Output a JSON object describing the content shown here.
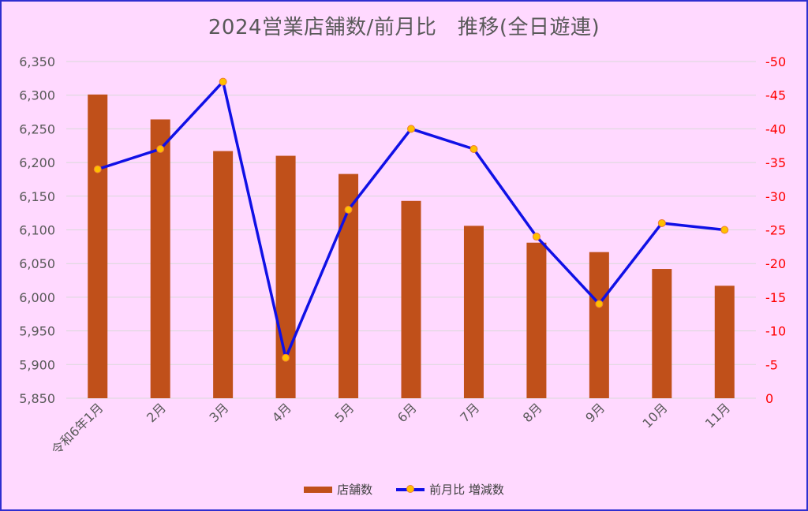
{
  "chart_data": {
    "type": "bar",
    "title": "2024営業店舗数/前月比　推移(全日遊連)",
    "categories": [
      "令和6年1月",
      "2月",
      "3月",
      "4月",
      "5月",
      "6月",
      "7月",
      "8月",
      "9月",
      "10月",
      "11月"
    ],
    "series": [
      {
        "name": "店舗数",
        "type": "bar",
        "axis": "left",
        "color": "#c0501a",
        "values": [
          6301,
          6264,
          6217,
          6210,
          6183,
          6143,
          6106,
          6081,
          6067,
          6042,
          6017
        ]
      },
      {
        "name": "前月比 増減数",
        "type": "line",
        "axis": "right",
        "color": "#1010e6",
        "marker_color": "#ffc000",
        "values": [
          -34,
          -37,
          -47,
          -6,
          -28,
          -40,
          -37,
          -24,
          -14,
          -26,
          -25
        ]
      }
    ],
    "left_axis": {
      "ylim": [
        5850,
        6350
      ],
      "ticks": [
        "5,850",
        "5,900",
        "5,950",
        "6,000",
        "6,050",
        "6,100",
        "6,150",
        "6,200",
        "6,250",
        "6,300",
        "6,350"
      ]
    },
    "right_axis": {
      "ylim": [
        0,
        -50
      ],
      "reversed": true,
      "color": "#ff0000",
      "ticks": [
        "0",
        "-5",
        "-10",
        "-15",
        "-20",
        "-25",
        "-30",
        "-35",
        "-40",
        "-45",
        "-50"
      ]
    },
    "grid": true,
    "legend_position": "bottom"
  }
}
